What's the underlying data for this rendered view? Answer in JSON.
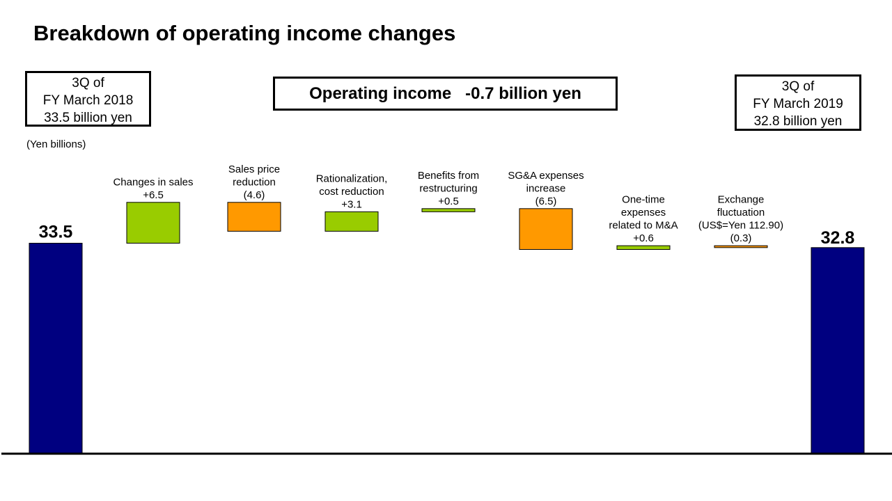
{
  "title": "Breakdown of operating income changes",
  "start_box": {
    "lines": [
      "3Q of",
      "FY March 2018",
      "33.5 billion  yen"
    ]
  },
  "end_box": {
    "lines": [
      "3Q of",
      "FY March 2019",
      "32.8 billion  yen"
    ]
  },
  "summary": {
    "text": "Operating income   -0.7 billion yen"
  },
  "units_note": "(Yen billions)",
  "colors": {
    "total": "#000080",
    "increase": "#99CC00",
    "decrease": "#FF9900",
    "axis": "#000000"
  },
  "chart_data": {
    "type": "bar",
    "subtype": "waterfall",
    "unit": "Yen billions",
    "start": {
      "value": 33.5,
      "label": "33.5"
    },
    "end": {
      "value": 32.8,
      "label": "32.8"
    },
    "steps": [
      {
        "label_lines": [
          "Changes in sales",
          "+6.5"
        ],
        "value": 6.5
      },
      {
        "label_lines": [
          "Sales price",
          "reduction",
          "(4.6)"
        ],
        "value": -4.6
      },
      {
        "label_lines": [
          "Rationalization,",
          "cost reduction",
          "+3.1"
        ],
        "value": 3.1
      },
      {
        "label_lines": [
          "Benefits from",
          "restructuring",
          "+0.5"
        ],
        "value": 0.5
      },
      {
        "label_lines": [
          "SG&A expenses",
          "increase",
          "(6.5)"
        ],
        "value": -6.5
      },
      {
        "label_lines": [
          "One-time",
          "expenses",
          "related to M&A",
          "+0.6"
        ],
        "value": 0.6
      },
      {
        "label_lines": [
          "Exchange",
          "fluctuation",
          "(US$=Yen  112.90)",
          "(0.3)"
        ],
        "value": -0.3
      }
    ]
  }
}
